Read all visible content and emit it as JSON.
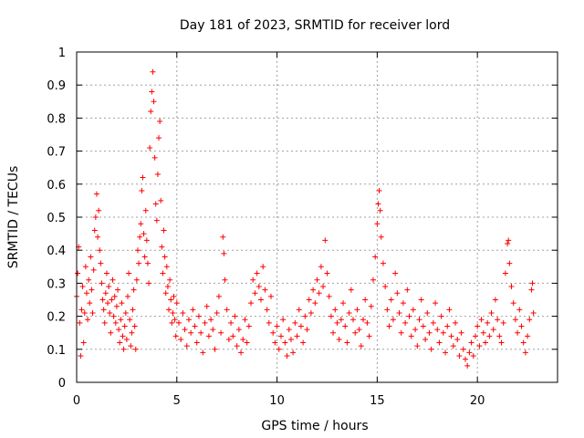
{
  "chart_data": {
    "type": "scatter",
    "title": "Day 181 of 2023, SRMTID for receiver lord",
    "xlabel": "GPS time / hours",
    "ylabel": "SRMTID / TECUs",
    "xlim": [
      0,
      24
    ],
    "ylim": [
      0,
      1
    ],
    "xticks": [
      0,
      5,
      10,
      15,
      20
    ],
    "xtick_labels": [
      "0",
      "5",
      "10",
      "15",
      "20"
    ],
    "yticks": [
      0,
      0.1,
      0.2,
      0.3,
      0.4,
      0.5,
      0.6,
      0.7,
      0.8,
      0.9,
      1
    ],
    "ytick_labels": [
      "0",
      "0.1",
      "0.2",
      "0.3",
      "0.4",
      "0.5",
      "0.6",
      "0.7",
      "0.8",
      "0.9",
      "1"
    ],
    "grid": true,
    "marker": "+",
    "color": "#ff0000",
    "series": [
      {
        "name": "SRMTID",
        "points": [
          [
            0.0,
            0.26
          ],
          [
            0.05,
            0.33
          ],
          [
            0.1,
            0.41
          ],
          [
            0.15,
            0.18
          ],
          [
            0.2,
            0.08
          ],
          [
            0.25,
            0.22
          ],
          [
            0.3,
            0.29
          ],
          [
            0.35,
            0.12
          ],
          [
            0.4,
            0.21
          ],
          [
            0.45,
            0.35
          ],
          [
            0.5,
            0.27
          ],
          [
            0.55,
            0.19
          ],
          [
            0.6,
            0.31
          ],
          [
            0.65,
            0.24
          ],
          [
            0.7,
            0.38
          ],
          [
            0.75,
            0.28
          ],
          [
            0.8,
            0.21
          ],
          [
            0.85,
            0.34
          ],
          [
            0.9,
            0.46
          ],
          [
            0.95,
            0.5
          ],
          [
            1.0,
            0.57
          ],
          [
            1.05,
            0.44
          ],
          [
            1.1,
            0.52
          ],
          [
            1.15,
            0.4
          ],
          [
            1.2,
            0.36
          ],
          [
            1.25,
            0.3
          ],
          [
            1.3,
            0.25
          ],
          [
            1.35,
            0.22
          ],
          [
            1.4,
            0.18
          ],
          [
            1.45,
            0.27
          ],
          [
            1.5,
            0.33
          ],
          [
            1.55,
            0.24
          ],
          [
            1.6,
            0.29
          ],
          [
            1.65,
            0.21
          ],
          [
            1.7,
            0.15
          ],
          [
            1.75,
            0.25
          ],
          [
            1.8,
            0.31
          ],
          [
            1.85,
            0.2
          ],
          [
            1.9,
            0.26
          ],
          [
            1.95,
            0.18
          ],
          [
            2.0,
            0.23
          ],
          [
            2.05,
            0.28
          ],
          [
            2.1,
            0.16
          ],
          [
            2.15,
            0.12
          ],
          [
            2.2,
            0.19
          ],
          [
            2.25,
            0.24
          ],
          [
            2.3,
            0.14
          ],
          [
            2.35,
            0.1
          ],
          [
            2.4,
            0.17
          ],
          [
            2.45,
            0.21
          ],
          [
            2.5,
            0.13
          ],
          [
            2.55,
            0.26
          ],
          [
            2.6,
            0.33
          ],
          [
            2.65,
            0.19
          ],
          [
            2.7,
            0.11
          ],
          [
            2.75,
            0.15
          ],
          [
            2.8,
            0.22
          ],
          [
            2.85,
            0.28
          ],
          [
            2.9,
            0.17
          ],
          [
            2.95,
            0.1
          ],
          [
            3.0,
            0.31
          ],
          [
            3.05,
            0.4
          ],
          [
            3.1,
            0.36
          ],
          [
            3.15,
            0.44
          ],
          [
            3.2,
            0.48
          ],
          [
            3.25,
            0.58
          ],
          [
            3.3,
            0.62
          ],
          [
            3.35,
            0.45
          ],
          [
            3.4,
            0.38
          ],
          [
            3.45,
            0.52
          ],
          [
            3.5,
            0.43
          ],
          [
            3.55,
            0.36
          ],
          [
            3.6,
            0.3
          ],
          [
            3.65,
            0.71
          ],
          [
            3.7,
            0.82
          ],
          [
            3.75,
            0.88
          ],
          [
            3.8,
            0.94
          ],
          [
            3.85,
            0.85
          ],
          [
            3.9,
            0.68
          ],
          [
            3.95,
            0.54
          ],
          [
            4.0,
            0.49
          ],
          [
            4.05,
            0.63
          ],
          [
            4.1,
            0.74
          ],
          [
            4.15,
            0.79
          ],
          [
            4.2,
            0.55
          ],
          [
            4.25,
            0.41
          ],
          [
            4.3,
            0.33
          ],
          [
            4.35,
            0.46
          ],
          [
            4.4,
            0.38
          ],
          [
            4.45,
            0.27
          ],
          [
            4.5,
            0.35
          ],
          [
            4.55,
            0.29
          ],
          [
            4.6,
            0.22
          ],
          [
            4.65,
            0.31
          ],
          [
            4.7,
            0.25
          ],
          [
            4.75,
            0.18
          ],
          [
            4.8,
            0.21
          ],
          [
            4.85,
            0.26
          ],
          [
            4.9,
            0.19
          ],
          [
            4.95,
            0.14
          ],
          [
            5.0,
            0.24
          ],
          [
            5.1,
            0.18
          ],
          [
            5.2,
            0.13
          ],
          [
            5.3,
            0.21
          ],
          [
            5.4,
            0.16
          ],
          [
            5.5,
            0.11
          ],
          [
            5.6,
            0.19
          ],
          [
            5.7,
            0.15
          ],
          [
            5.8,
            0.22
          ],
          [
            5.9,
            0.17
          ],
          [
            6.0,
            0.12
          ],
          [
            6.1,
            0.2
          ],
          [
            6.2,
            0.15
          ],
          [
            6.3,
            0.09
          ],
          [
            6.4,
            0.18
          ],
          [
            6.5,
            0.23
          ],
          [
            6.6,
            0.14
          ],
          [
            6.7,
            0.19
          ],
          [
            6.8,
            0.16
          ],
          [
            6.9,
            0.1
          ],
          [
            7.0,
            0.21
          ],
          [
            7.1,
            0.26
          ],
          [
            7.2,
            0.15
          ],
          [
            7.3,
            0.44
          ],
          [
            7.35,
            0.39
          ],
          [
            7.4,
            0.31
          ],
          [
            7.5,
            0.22
          ],
          [
            7.6,
            0.13
          ],
          [
            7.7,
            0.18
          ],
          [
            7.8,
            0.14
          ],
          [
            7.9,
            0.2
          ],
          [
            8.0,
            0.11
          ],
          [
            8.1,
            0.16
          ],
          [
            8.2,
            0.09
          ],
          [
            8.3,
            0.13
          ],
          [
            8.4,
            0.19
          ],
          [
            8.5,
            0.12
          ],
          [
            8.6,
            0.17
          ],
          [
            8.7,
            0.24
          ],
          [
            8.8,
            0.31
          ],
          [
            8.9,
            0.27
          ],
          [
            9.0,
            0.33
          ],
          [
            9.1,
            0.29
          ],
          [
            9.2,
            0.25
          ],
          [
            9.3,
            0.35
          ],
          [
            9.4,
            0.28
          ],
          [
            9.5,
            0.22
          ],
          [
            9.6,
            0.18
          ],
          [
            9.7,
            0.26
          ],
          [
            9.8,
            0.15
          ],
          [
            9.9,
            0.12
          ],
          [
            10.0,
            0.17
          ],
          [
            10.1,
            0.1
          ],
          [
            10.2,
            0.14
          ],
          [
            10.3,
            0.19
          ],
          [
            10.4,
            0.12
          ],
          [
            10.5,
            0.08
          ],
          [
            10.6,
            0.16
          ],
          [
            10.7,
            0.13
          ],
          [
            10.8,
            0.09
          ],
          [
            10.9,
            0.18
          ],
          [
            11.0,
            0.14
          ],
          [
            11.1,
            0.22
          ],
          [
            11.2,
            0.17
          ],
          [
            11.3,
            0.12
          ],
          [
            11.4,
            0.2
          ],
          [
            11.5,
            0.16
          ],
          [
            11.6,
            0.25
          ],
          [
            11.7,
            0.21
          ],
          [
            11.8,
            0.28
          ],
          [
            11.9,
            0.24
          ],
          [
            12.0,
            0.31
          ],
          [
            12.1,
            0.27
          ],
          [
            12.2,
            0.35
          ],
          [
            12.3,
            0.29
          ],
          [
            12.4,
            0.43
          ],
          [
            12.5,
            0.33
          ],
          [
            12.6,
            0.26
          ],
          [
            12.7,
            0.2
          ],
          [
            12.8,
            0.15
          ],
          [
            12.9,
            0.22
          ],
          [
            13.0,
            0.18
          ],
          [
            13.1,
            0.13
          ],
          [
            13.2,
            0.19
          ],
          [
            13.3,
            0.24
          ],
          [
            13.4,
            0.17
          ],
          [
            13.5,
            0.12
          ],
          [
            13.6,
            0.21
          ],
          [
            13.7,
            0.28
          ],
          [
            13.8,
            0.19
          ],
          [
            13.9,
            0.15
          ],
          [
            14.0,
            0.22
          ],
          [
            14.1,
            0.16
          ],
          [
            14.2,
            0.11
          ],
          [
            14.3,
            0.19
          ],
          [
            14.4,
            0.25
          ],
          [
            14.5,
            0.18
          ],
          [
            14.6,
            0.14
          ],
          [
            14.7,
            0.23
          ],
          [
            14.8,
            0.31
          ],
          [
            14.9,
            0.38
          ],
          [
            15.0,
            0.48
          ],
          [
            15.05,
            0.54
          ],
          [
            15.1,
            0.58
          ],
          [
            15.15,
            0.52
          ],
          [
            15.2,
            0.44
          ],
          [
            15.3,
            0.36
          ],
          [
            15.4,
            0.29
          ],
          [
            15.5,
            0.22
          ],
          [
            15.6,
            0.17
          ],
          [
            15.7,
            0.25
          ],
          [
            15.8,
            0.19
          ],
          [
            15.9,
            0.33
          ],
          [
            16.0,
            0.27
          ],
          [
            16.1,
            0.21
          ],
          [
            16.2,
            0.15
          ],
          [
            16.3,
            0.24
          ],
          [
            16.4,
            0.18
          ],
          [
            16.5,
            0.28
          ],
          [
            16.6,
            0.2
          ],
          [
            16.7,
            0.14
          ],
          [
            16.8,
            0.22
          ],
          [
            16.9,
            0.16
          ],
          [
            17.0,
            0.11
          ],
          [
            17.1,
            0.19
          ],
          [
            17.2,
            0.25
          ],
          [
            17.3,
            0.17
          ],
          [
            17.4,
            0.13
          ],
          [
            17.5,
            0.21
          ],
          [
            17.6,
            0.15
          ],
          [
            17.7,
            0.1
          ],
          [
            17.8,
            0.18
          ],
          [
            17.9,
            0.24
          ],
          [
            18.0,
            0.16
          ],
          [
            18.1,
            0.12
          ],
          [
            18.2,
            0.2
          ],
          [
            18.3,
            0.15
          ],
          [
            18.4,
            0.09
          ],
          [
            18.5,
            0.17
          ],
          [
            18.6,
            0.22
          ],
          [
            18.7,
            0.14
          ],
          [
            18.8,
            0.11
          ],
          [
            18.9,
            0.18
          ],
          [
            19.0,
            0.13
          ],
          [
            19.1,
            0.08
          ],
          [
            19.2,
            0.15
          ],
          [
            19.3,
            0.1
          ],
          [
            19.4,
            0.07
          ],
          [
            19.5,
            0.05
          ],
          [
            19.6,
            0.09
          ],
          [
            19.7,
            0.12
          ],
          [
            19.8,
            0.08
          ],
          [
            19.9,
            0.14
          ],
          [
            20.0,
            0.17
          ],
          [
            20.1,
            0.11
          ],
          [
            20.2,
            0.19
          ],
          [
            20.3,
            0.15
          ],
          [
            20.4,
            0.12
          ],
          [
            20.5,
            0.18
          ],
          [
            20.6,
            0.14
          ],
          [
            20.7,
            0.21
          ],
          [
            20.8,
            0.16
          ],
          [
            20.9,
            0.25
          ],
          [
            21.0,
            0.19
          ],
          [
            21.1,
            0.14
          ],
          [
            21.2,
            0.12
          ],
          [
            21.3,
            0.18
          ],
          [
            21.4,
            0.33
          ],
          [
            21.5,
            0.42
          ],
          [
            21.55,
            0.43
          ],
          [
            21.6,
            0.36
          ],
          [
            21.7,
            0.29
          ],
          [
            21.8,
            0.24
          ],
          [
            21.9,
            0.19
          ],
          [
            22.0,
            0.15
          ],
          [
            22.1,
            0.22
          ],
          [
            22.2,
            0.17
          ],
          [
            22.3,
            0.12
          ],
          [
            22.4,
            0.09
          ],
          [
            22.5,
            0.14
          ],
          [
            22.6,
            0.19
          ],
          [
            22.7,
            0.28
          ],
          [
            22.75,
            0.3
          ],
          [
            22.8,
            0.21
          ]
        ]
      }
    ]
  }
}
